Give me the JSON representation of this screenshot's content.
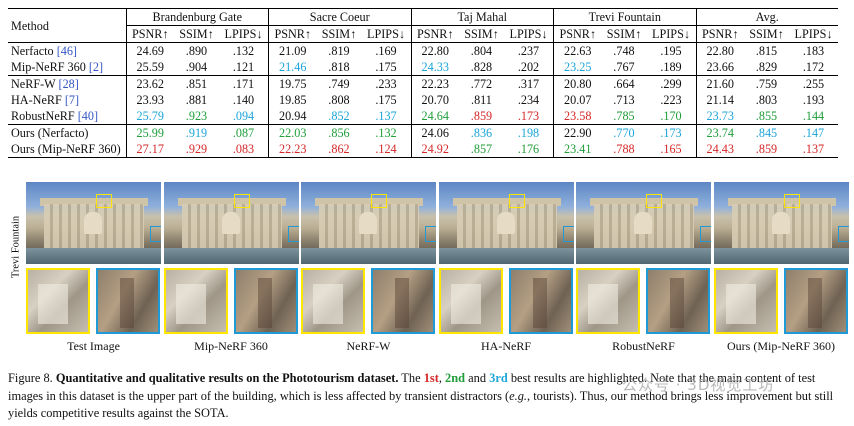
{
  "table": {
    "method_header": "Method",
    "scenes": [
      "Brandenburg Gate",
      "Sacre Coeur",
      "Taj Mahal",
      "Trevi Fountain",
      "Avg."
    ],
    "metrics": [
      "PSNR↑",
      "SSIM↑",
      "LPIPS↓"
    ],
    "groups": [
      [
        {
          "method": "Nerfacto ",
          "cite": "[46]",
          "cells": [
            [
              "24.69",
              ""
            ],
            [
              ".890",
              ""
            ],
            [
              ".132",
              ""
            ],
            [
              "21.09",
              ""
            ],
            [
              ".819",
              ""
            ],
            [
              ".169",
              ""
            ],
            [
              "22.80",
              ""
            ],
            [
              ".804",
              ""
            ],
            [
              ".237",
              ""
            ],
            [
              "22.63",
              ""
            ],
            [
              ".748",
              ""
            ],
            [
              ".195",
              ""
            ],
            [
              "22.80",
              ""
            ],
            [
              ".815",
              ""
            ],
            [
              ".183",
              ""
            ]
          ]
        },
        {
          "method": "Mip-NeRF 360 ",
          "cite": "[2]",
          "cells": [
            [
              "25.59",
              ""
            ],
            [
              ".904",
              ""
            ],
            [
              ".121",
              ""
            ],
            [
              "21.46",
              "r3"
            ],
            [
              ".818",
              ""
            ],
            [
              ".175",
              ""
            ],
            [
              "24.33",
              "r3"
            ],
            [
              ".828",
              ""
            ],
            [
              ".202",
              ""
            ],
            [
              "23.25",
              "r3"
            ],
            [
              ".767",
              ""
            ],
            [
              ".189",
              ""
            ],
            [
              "23.66",
              ""
            ],
            [
              ".829",
              ""
            ],
            [
              ".172",
              ""
            ]
          ]
        }
      ],
      [
        {
          "method": "NeRF-W ",
          "cite": "[28]",
          "cells": [
            [
              "23.62",
              ""
            ],
            [
              ".851",
              ""
            ],
            [
              ".171",
              ""
            ],
            [
              "19.75",
              ""
            ],
            [
              ".749",
              ""
            ],
            [
              ".233",
              ""
            ],
            [
              "22.23",
              ""
            ],
            [
              ".772",
              ""
            ],
            [
              ".317",
              ""
            ],
            [
              "20.80",
              ""
            ],
            [
              ".664",
              ""
            ],
            [
              ".299",
              ""
            ],
            [
              "21.60",
              ""
            ],
            [
              ".759",
              ""
            ],
            [
              ".255",
              ""
            ]
          ]
        },
        {
          "method": "HA-NeRF ",
          "cite": "[7]",
          "cells": [
            [
              "23.93",
              ""
            ],
            [
              ".881",
              ""
            ],
            [
              ".140",
              ""
            ],
            [
              "19.85",
              ""
            ],
            [
              ".808",
              ""
            ],
            [
              ".175",
              ""
            ],
            [
              "20.70",
              ""
            ],
            [
              ".811",
              ""
            ],
            [
              ".234",
              ""
            ],
            [
              "20.07",
              ""
            ],
            [
              ".713",
              ""
            ],
            [
              ".223",
              ""
            ],
            [
              "21.14",
              ""
            ],
            [
              ".803",
              ""
            ],
            [
              ".193",
              ""
            ]
          ]
        },
        {
          "method": "RobustNeRF ",
          "cite": "[40]",
          "cells": [
            [
              "25.79",
              "r3"
            ],
            [
              ".923",
              "r2"
            ],
            [
              ".094",
              "r3"
            ],
            [
              "20.94",
              ""
            ],
            [
              ".852",
              "r3"
            ],
            [
              ".137",
              "r3"
            ],
            [
              "24.64",
              "r2"
            ],
            [
              ".859",
              "r1"
            ],
            [
              ".173",
              "r1"
            ],
            [
              "23.58",
              "r1"
            ],
            [
              ".785",
              "r2"
            ],
            [
              ".170",
              "r2"
            ],
            [
              "23.73",
              "r3"
            ],
            [
              ".855",
              "r2"
            ],
            [
              ".144",
              "r2"
            ]
          ]
        }
      ],
      [
        {
          "method": "Ours (Nerfacto)",
          "cite": "",
          "cells": [
            [
              "25.99",
              "r2"
            ],
            [
              ".919",
              "r3"
            ],
            [
              ".087",
              "r2"
            ],
            [
              "22.03",
              "r2"
            ],
            [
              ".856",
              "r2"
            ],
            [
              ".132",
              "r2"
            ],
            [
              "24.06",
              ""
            ],
            [
              ".836",
              "r3"
            ],
            [
              ".198",
              "r3"
            ],
            [
              "22.90",
              ""
            ],
            [
              ".770",
              "r3"
            ],
            [
              ".173",
              "r3"
            ],
            [
              "23.74",
              "r2"
            ],
            [
              ".845",
              "r3"
            ],
            [
              ".147",
              "r3"
            ]
          ]
        },
        {
          "method": "Ours (Mip-NeRF 360)",
          "cite": "",
          "cells": [
            [
              "27.17",
              "r1"
            ],
            [
              ".929",
              "r1"
            ],
            [
              ".083",
              "r1"
            ],
            [
              "22.23",
              "r1"
            ],
            [
              ".862",
              "r1"
            ],
            [
              ".124",
              "r1"
            ],
            [
              "24.92",
              "r1"
            ],
            [
              ".857",
              "r2"
            ],
            [
              ".176",
              "r2"
            ],
            [
              "23.41",
              "r2"
            ],
            [
              ".788",
              "r1"
            ],
            [
              ".165",
              "r1"
            ],
            [
              "24.43",
              "r1"
            ],
            [
              ".859",
              "r1"
            ],
            [
              ".137",
              "r1"
            ]
          ]
        }
      ]
    ]
  },
  "figure": {
    "side_label": "Trevi Fountain",
    "columns": [
      "Test Image",
      "Mip-NeRF 360",
      "NeRF-W",
      "HA-NeRF",
      "RobustNeRF",
      "Ours (Mip-NeRF 360)"
    ]
  },
  "caption": {
    "label": "Figure 8. ",
    "title": "Quantitative and qualitative results on the Phototourism dataset.",
    "text1": " The ",
    "first": "1st",
    "sep1": ", ",
    "second": "2nd",
    "sep2": " and ",
    "third": "3rd",
    "text2": " best results are highlighted. Note that the main content of test images in this dataset is the upper part of the building, which is less affected by transient distractors (",
    "eg": "e.g.",
    "text3": ", tourists). Thus, our method brings less improvement but still yields competitive results against the SOTA.",
    "watermark": "公众号 · 3D视觉工坊"
  }
}
